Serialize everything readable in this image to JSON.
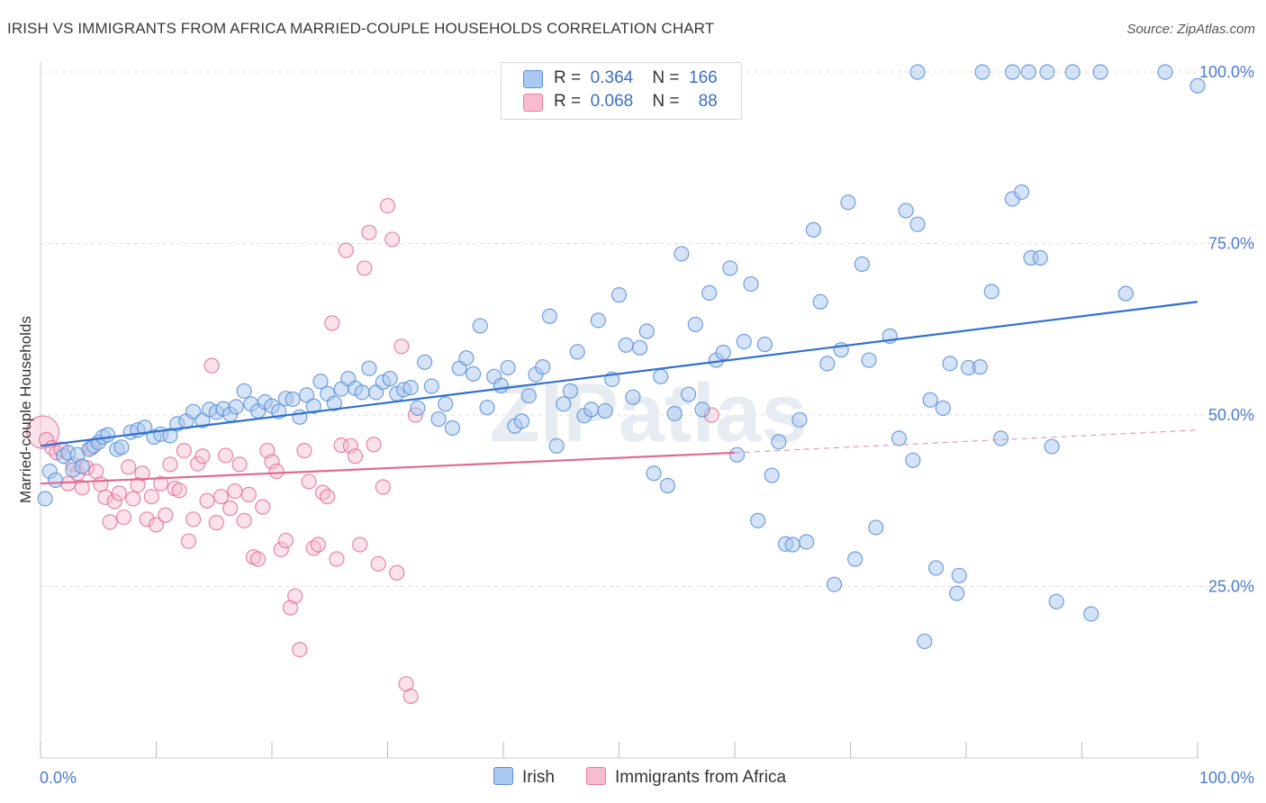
{
  "title": "IRISH VS IMMIGRANTS FROM AFRICA MARRIED-COUPLE HOUSEHOLDS CORRELATION CHART",
  "source": "Source: ZipAtlas.com",
  "watermark": "ZIPatlas",
  "legend": {
    "r_label": "R =",
    "n_label": "N =",
    "rows": [
      {
        "r": "0.364",
        "n": "166",
        "color": "#aac8f0",
        "border": "#5b8fd6"
      },
      {
        "r": "0.068",
        "n": "88",
        "color": "#f7bcd0",
        "border": "#e57ea3"
      }
    ]
  },
  "bottom_legend": [
    {
      "label": "Irish",
      "color": "#aac8f0",
      "border": "#5b8fd6"
    },
    {
      "label": "Immigrants from Africa",
      "color": "#f7bcd0",
      "border": "#e57ea3"
    }
  ],
  "chart_data": {
    "type": "scatter",
    "title": "IRISH VS IMMIGRANTS FROM AFRICA MARRIED-COUPLE HOUSEHOLDS CORRELATION CHART",
    "xlabel": "",
    "ylabel": "Married-couple Households",
    "xlim": [
      0,
      100
    ],
    "ylim": [
      0,
      100
    ],
    "x_tick_labels": [
      "0.0%",
      "100.0%"
    ],
    "y_tick_labels": [
      "25.0%",
      "50.0%",
      "75.0%",
      "100.0%"
    ],
    "y_ticks": [
      25,
      50,
      75,
      100
    ],
    "grid": true,
    "legend_position": "top-center",
    "series": [
      {
        "name": "Irish",
        "color": "#5b8fd6",
        "fill": "#aac8f0",
        "trend": {
          "x": [
            0,
            100
          ],
          "y": [
            45.5,
            66.5
          ]
        },
        "points": [
          [
            0.4,
            37.8
          ],
          [
            0.8,
            41.8
          ],
          [
            1.3,
            40.5
          ],
          [
            2.0,
            44.0
          ],
          [
            2.4,
            44.5
          ],
          [
            2.8,
            42.0
          ],
          [
            3.2,
            44.2
          ],
          [
            3.6,
            42.5
          ],
          [
            4.2,
            45.0
          ],
          [
            4.6,
            45.5
          ],
          [
            5.0,
            46.0
          ],
          [
            5.4,
            46.8
          ],
          [
            5.8,
            47.1
          ],
          [
            6.6,
            45.0
          ],
          [
            7.0,
            45.3
          ],
          [
            7.8,
            47.5
          ],
          [
            8.4,
            47.8
          ],
          [
            9.0,
            48.2
          ],
          [
            9.8,
            46.8
          ],
          [
            10.4,
            47.2
          ],
          [
            11.2,
            47.0
          ],
          [
            11.8,
            48.7
          ],
          [
            12.6,
            49.1
          ],
          [
            13.2,
            50.5
          ],
          [
            14.0,
            49.2
          ],
          [
            14.6,
            50.8
          ],
          [
            15.2,
            50.4
          ],
          [
            15.8,
            50.9
          ],
          [
            16.4,
            50.1
          ],
          [
            16.9,
            51.2
          ],
          [
            17.6,
            53.5
          ],
          [
            18.2,
            51.6
          ],
          [
            18.8,
            50.6
          ],
          [
            19.4,
            51.9
          ],
          [
            20.0,
            51.3
          ],
          [
            20.6,
            50.5
          ],
          [
            21.2,
            52.4
          ],
          [
            21.8,
            52.3
          ],
          [
            22.4,
            49.7
          ],
          [
            23.0,
            52.9
          ],
          [
            23.6,
            51.3
          ],
          [
            24.2,
            54.9
          ],
          [
            24.8,
            53.1
          ],
          [
            25.4,
            51.7
          ],
          [
            26.0,
            53.8
          ],
          [
            26.6,
            55.3
          ],
          [
            27.2,
            53.9
          ],
          [
            27.8,
            53.3
          ],
          [
            28.4,
            56.8
          ],
          [
            29.0,
            53.3
          ],
          [
            29.6,
            54.8
          ],
          [
            30.2,
            55.3
          ],
          [
            30.8,
            53.1
          ],
          [
            31.4,
            53.7
          ],
          [
            32.0,
            54.0
          ],
          [
            32.6,
            51.0
          ],
          [
            33.2,
            57.7
          ],
          [
            33.8,
            54.2
          ],
          [
            34.4,
            49.4
          ],
          [
            35.0,
            51.6
          ],
          [
            35.6,
            48.1
          ],
          [
            36.2,
            56.8
          ],
          [
            36.8,
            58.3
          ],
          [
            37.4,
            56.0
          ],
          [
            38.0,
            63.0
          ],
          [
            38.6,
            51.1
          ],
          [
            39.2,
            55.6
          ],
          [
            39.8,
            54.3
          ],
          [
            40.4,
            56.9
          ],
          [
            41.0,
            48.4
          ],
          [
            41.6,
            49.1
          ],
          [
            42.2,
            52.8
          ],
          [
            42.8,
            55.9
          ],
          [
            43.4,
            57.0
          ],
          [
            44.0,
            64.4
          ],
          [
            44.6,
            45.5
          ],
          [
            45.2,
            51.6
          ],
          [
            45.8,
            53.5
          ],
          [
            46.4,
            59.2
          ],
          [
            47.0,
            49.9
          ],
          [
            47.6,
            50.8
          ],
          [
            48.2,
            63.8
          ],
          [
            48.8,
            50.6
          ],
          [
            49.4,
            55.2
          ],
          [
            50.0,
            67.5
          ],
          [
            50.6,
            60.2
          ],
          [
            51.2,
            52.6
          ],
          [
            51.8,
            59.8
          ],
          [
            52.4,
            62.2
          ],
          [
            53.0,
            41.5
          ],
          [
            53.6,
            55.6
          ],
          [
            54.2,
            39.7
          ],
          [
            54.8,
            50.2
          ],
          [
            55.4,
            73.5
          ],
          [
            56.0,
            53.0
          ],
          [
            56.6,
            63.2
          ],
          [
            57.2,
            50.8
          ],
          [
            57.8,
            67.8
          ],
          [
            58.4,
            58.0
          ],
          [
            59.0,
            59.1
          ],
          [
            59.6,
            71.4
          ],
          [
            60.2,
            44.2
          ],
          [
            60.8,
            60.7
          ],
          [
            61.4,
            69.1
          ],
          [
            62.0,
            34.6
          ],
          [
            62.6,
            60.3
          ],
          [
            63.2,
            41.2
          ],
          [
            63.8,
            46.1
          ],
          [
            64.4,
            31.2
          ],
          [
            65.0,
            31.1
          ],
          [
            65.6,
            49.3
          ],
          [
            66.2,
            31.5
          ],
          [
            66.8,
            77.0
          ],
          [
            67.4,
            66.5
          ],
          [
            68.0,
            57.5
          ],
          [
            68.6,
            25.3
          ],
          [
            69.2,
            59.5
          ],
          [
            69.8,
            81.0
          ],
          [
            70.4,
            29.0
          ],
          [
            71.0,
            72.0
          ],
          [
            71.6,
            58.0
          ],
          [
            72.2,
            33.6
          ],
          [
            73.4,
            61.5
          ],
          [
            74.2,
            46.6
          ],
          [
            74.8,
            79.8
          ],
          [
            75.4,
            43.4
          ],
          [
            75.8,
            77.8
          ],
          [
            76.4,
            17.0
          ],
          [
            76.9,
            52.2
          ],
          [
            77.4,
            27.7
          ],
          [
            78.0,
            51.0
          ],
          [
            78.6,
            57.5
          ],
          [
            79.2,
            24.0
          ],
          [
            79.4,
            26.6
          ],
          [
            80.2,
            56.9
          ],
          [
            81.2,
            57.0
          ],
          [
            82.2,
            68.0
          ],
          [
            83.0,
            46.6
          ],
          [
            84.0,
            81.5
          ],
          [
            84.8,
            82.5
          ],
          [
            85.6,
            72.9
          ],
          [
            86.4,
            72.9
          ],
          [
            87.4,
            45.4
          ],
          [
            87.8,
            22.8
          ],
          [
            90.8,
            21.0
          ],
          [
            75.8,
            100.0
          ],
          [
            81.4,
            100.0
          ],
          [
            84.0,
            100.0
          ],
          [
            85.4,
            100.0
          ],
          [
            87.0,
            100.0
          ],
          [
            89.2,
            100.0
          ],
          [
            91.6,
            100.0
          ],
          [
            93.8,
            67.7
          ],
          [
            97.2,
            100.0
          ],
          [
            100.0,
            98.0
          ]
        ]
      },
      {
        "name": "Immigrants from Africa",
        "color": "#e06a94",
        "fill": "#f7bcd0",
        "trend": {
          "x": [
            0,
            60
          ],
          "y": [
            40.0,
            44.5
          ]
        },
        "trend_dashed": {
          "x": [
            60,
            100
          ],
          "y": [
            44.5,
            47.8
          ]
        },
        "points": [
          [
            0.2,
            47.5
          ],
          [
            0.5,
            46.4
          ],
          [
            1.0,
            45.2
          ],
          [
            1.4,
            44.5
          ],
          [
            1.8,
            45.0
          ],
          [
            2.4,
            40.0
          ],
          [
            2.8,
            42.8
          ],
          [
            3.2,
            41.5
          ],
          [
            3.6,
            39.4
          ],
          [
            4.0,
            42.3
          ],
          [
            4.4,
            45.2
          ],
          [
            4.8,
            41.8
          ],
          [
            5.2,
            39.9
          ],
          [
            5.6,
            38.0
          ],
          [
            6.0,
            34.4
          ],
          [
            6.4,
            37.4
          ],
          [
            6.8,
            38.6
          ],
          [
            7.2,
            35.1
          ],
          [
            7.6,
            42.4
          ],
          [
            8.0,
            37.8
          ],
          [
            8.4,
            39.8
          ],
          [
            8.8,
            41.5
          ],
          [
            9.2,
            34.8
          ],
          [
            9.6,
            38.1
          ],
          [
            10.0,
            34.0
          ],
          [
            10.4,
            40.0
          ],
          [
            10.8,
            35.4
          ],
          [
            11.2,
            42.8
          ],
          [
            11.6,
            39.3
          ],
          [
            12.0,
            39.0
          ],
          [
            12.4,
            44.8
          ],
          [
            12.8,
            31.6
          ],
          [
            13.2,
            34.8
          ],
          [
            13.6,
            42.9
          ],
          [
            14.0,
            44.0
          ],
          [
            14.4,
            37.5
          ],
          [
            14.8,
            57.2
          ],
          [
            15.2,
            34.3
          ],
          [
            15.6,
            38.1
          ],
          [
            16.0,
            44.1
          ],
          [
            16.4,
            36.4
          ],
          [
            16.8,
            38.9
          ],
          [
            17.2,
            42.8
          ],
          [
            17.6,
            34.6
          ],
          [
            18.0,
            38.4
          ],
          [
            18.4,
            29.3
          ],
          [
            18.8,
            29.0
          ],
          [
            19.2,
            36.6
          ],
          [
            19.6,
            44.8
          ],
          [
            20.0,
            43.2
          ],
          [
            20.4,
            41.8
          ],
          [
            20.8,
            30.4
          ],
          [
            21.2,
            31.7
          ],
          [
            21.6,
            21.9
          ],
          [
            22.0,
            23.6
          ],
          [
            22.4,
            15.8
          ],
          [
            22.8,
            44.8
          ],
          [
            23.2,
            40.3
          ],
          [
            23.6,
            30.6
          ],
          [
            24.0,
            31.1
          ],
          [
            24.4,
            38.7
          ],
          [
            24.8,
            38.1
          ],
          [
            25.2,
            63.4
          ],
          [
            25.6,
            29.0
          ],
          [
            26.0,
            45.6
          ],
          [
            26.4,
            74.0
          ],
          [
            26.8,
            45.5
          ],
          [
            27.2,
            44.0
          ],
          [
            27.6,
            31.1
          ],
          [
            28.0,
            71.4
          ],
          [
            28.4,
            76.6
          ],
          [
            28.8,
            45.7
          ],
          [
            29.2,
            28.3
          ],
          [
            29.6,
            39.5
          ],
          [
            30.0,
            80.5
          ],
          [
            30.4,
            75.6
          ],
          [
            30.8,
            27.0
          ],
          [
            31.2,
            60.0
          ],
          [
            31.6,
            10.8
          ],
          [
            32.0,
            9.0
          ],
          [
            32.4,
            50.0
          ],
          [
            58.0,
            50.0
          ]
        ]
      }
    ]
  }
}
